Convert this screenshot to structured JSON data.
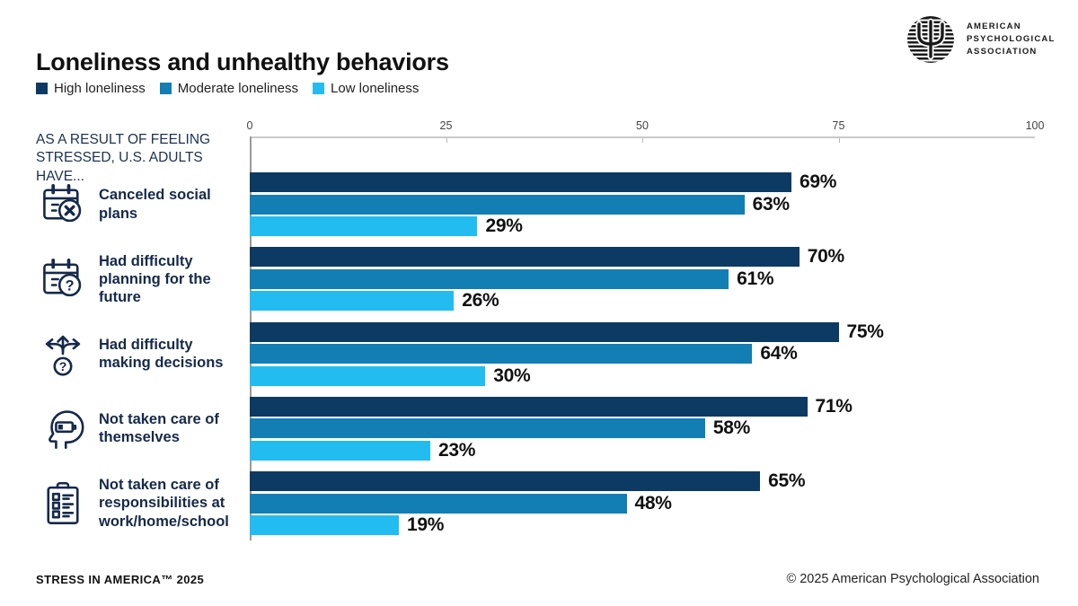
{
  "header": {
    "title": "Loneliness and unhealthy behaviors",
    "logo": {
      "line1": "AMERICAN",
      "line2": "PSYCHOLOGICAL",
      "line3": "ASSOCIATION"
    }
  },
  "legend": [
    {
      "label": "High loneliness",
      "color": "#0c3a63"
    },
    {
      "label": "Moderate loneliness",
      "color": "#127eb4"
    },
    {
      "label": "Low loneliness",
      "color": "#23bcf0"
    }
  ],
  "chart_data": {
    "type": "bar",
    "orientation": "horizontal",
    "title": "Loneliness and unhealthy behaviors",
    "kicker": "AS A RESULT OF FEELING STRESSED, U.S. ADULTS HAVE...",
    "axis": {
      "min": 0,
      "max": 100,
      "ticks": [
        0,
        25,
        50,
        75,
        100
      ]
    },
    "categories": [
      "Canceled social plans",
      "Had difficulty planning for the future",
      "Had difficulty making decisions",
      "Not taken care of themselves",
      "Not taken care of responsibilities at work/home/school"
    ],
    "category_icons": [
      "calendar-x-icon",
      "calendar-question-icon",
      "decision-arrows-icon",
      "head-low-battery-icon",
      "checklist-icon"
    ],
    "series": [
      {
        "name": "High loneliness",
        "color": "#0c3a63",
        "values": [
          69,
          70,
          75,
          71,
          65
        ]
      },
      {
        "name": "Moderate loneliness",
        "color": "#127eb4",
        "values": [
          63,
          61,
          64,
          58,
          48
        ]
      },
      {
        "name": "Low loneliness",
        "color": "#23bcf0",
        "values": [
          29,
          26,
          30,
          23,
          19
        ]
      }
    ],
    "value_suffix": "%",
    "legend_position": "top-left",
    "grid": false
  },
  "footer": {
    "left": "STRESS IN AMERICA™ 2025",
    "right": "© 2025 American Psychological Association"
  }
}
